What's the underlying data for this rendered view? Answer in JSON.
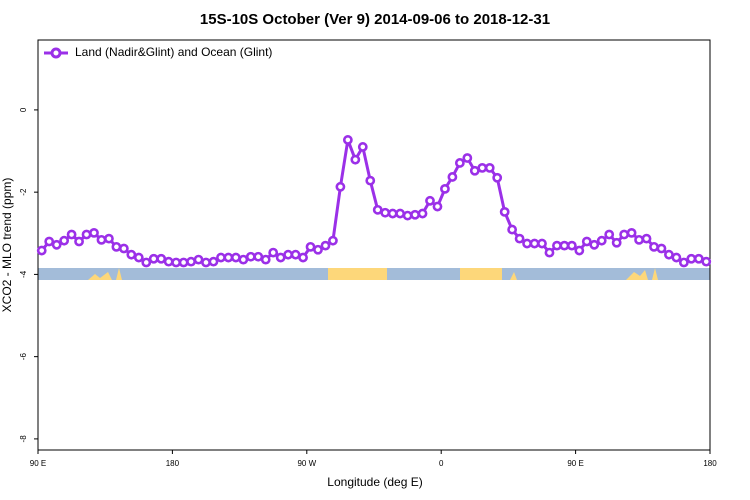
{
  "chart_data": {
    "type": "line",
    "title": "15S-10S October (Ver 9)   2014-09-06 to 2018-12-31",
    "x_label": "Longitude (deg E)",
    "y_label": "XCO2 - MLO trend (ppm)",
    "xlim": [
      90,
      540
    ],
    "ylim": [
      -8.27,
      1.7
    ],
    "xticks": [
      {
        "value": 90,
        "label": "90 E"
      },
      180,
      {
        "value": 270,
        "label": "90 W"
      },
      {
        "value": 360,
        "label": "0"
      },
      {
        "value": 450,
        "label": "90 E"
      },
      {
        "value": 540,
        "label": "180"
      }
    ],
    "yticks": [
      0,
      -2,
      -4,
      -6,
      -8
    ],
    "legend": "top-left",
    "x": [
      92.5,
      97.5,
      102.5,
      107.5,
      112.5,
      117.5,
      122.5,
      127.5,
      132.5,
      137.5,
      142.5,
      147.5,
      152.5,
      157.5,
      162.5,
      167.5,
      172.5,
      177.5,
      182.5,
      187.5,
      192.5,
      197.5,
      202.5,
      207.5,
      212.5,
      217.5,
      222.5,
      227.5,
      232.5,
      237.5,
      242.5,
      247.5,
      252.5,
      257.5,
      262.5,
      267.5,
      272.5,
      277.5,
      282.5,
      287.5,
      292.5,
      297.5,
      302.5,
      307.5,
      312.5,
      317.5,
      322.5,
      327.5,
      332.5,
      337.5,
      342.5,
      347.5,
      352.5,
      357.5,
      362.5,
      367.5,
      372.5,
      377.5,
      382.5,
      387.5,
      392.5,
      397.5,
      402.5,
      407.5,
      412.5,
      417.5,
      422.5,
      427.5,
      432.5,
      437.5,
      442.5,
      447.5,
      452.5,
      457.5,
      462.5,
      467.5,
      472.5,
      477.5,
      482.5,
      487.5,
      492.5,
      497.5,
      502.5,
      507.5,
      512.5,
      517.5,
      522.5,
      527.5,
      532.5,
      537.5
    ],
    "series": [
      {
        "name": "Land (Nadir&Glint) and Ocean (Glint)",
        "color": "#9b30e8",
        "values": [
          -3.42,
          -3.2,
          -3.28,
          -3.18,
          -3.03,
          -3.2,
          -3.03,
          -2.99,
          -3.16,
          -3.13,
          -3.33,
          -3.37,
          -3.52,
          -3.59,
          -3.71,
          -3.62,
          -3.62,
          -3.69,
          -3.71,
          -3.71,
          -3.69,
          -3.64,
          -3.71,
          -3.69,
          -3.59,
          -3.59,
          -3.59,
          -3.64,
          -3.57,
          -3.57,
          -3.64,
          -3.47,
          -3.59,
          -3.52,
          -3.52,
          -3.59,
          -3.33,
          -3.4,
          -3.3,
          -3.18,
          -1.87,
          -0.73,
          -1.21,
          -0.9,
          -1.72,
          -2.43,
          -2.5,
          -2.52,
          -2.52,
          -2.57,
          -2.55,
          -2.52,
          -2.21,
          -2.35,
          -1.92,
          -1.63,
          -1.29,
          -1.17,
          -1.48,
          -1.41,
          -1.41,
          -1.65,
          -2.48,
          -2.91,
          -3.13,
          -3.25,
          -3.25,
          -3.25,
          -3.47,
          -3.3,
          -3.3,
          -3.3,
          -3.42,
          -3.2,
          -3.28,
          -3.18,
          -3.03,
          -3.23,
          -3.03,
          -2.99,
          -3.16,
          -3.13,
          -3.33,
          -3.37,
          -3.52,
          -3.59,
          -3.71,
          -3.62,
          -3.62,
          -3.69
        ]
      }
    ]
  }
}
